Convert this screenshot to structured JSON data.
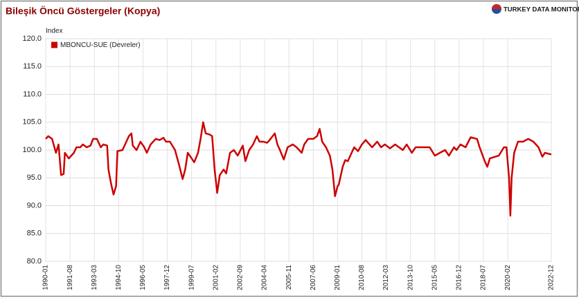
{
  "brand": "TURKEY DATA MONITOR",
  "chart_data": {
    "type": "line",
    "title": "Bileşik Öncü Göstergeler (Kopya)",
    "y_label": "Index",
    "grid": true,
    "legend": "top-left",
    "ylim": [
      80,
      120
    ],
    "yticks": [
      {
        "value": 80,
        "label": "80.0"
      },
      {
        "value": 85,
        "label": "85.0"
      },
      {
        "value": 90,
        "label": "90.0"
      },
      {
        "value": 95,
        "label": "95.0"
      },
      {
        "value": 100,
        "label": "100.0"
      },
      {
        "value": 105,
        "label": "105.0"
      },
      {
        "value": 110,
        "label": "110.0"
      },
      {
        "value": 115,
        "label": "115.0"
      },
      {
        "value": 120,
        "label": "120.0"
      }
    ],
    "xlim": [
      "1990-01",
      "2022-12"
    ],
    "xticks": [
      "1990-01",
      "1991-08",
      "1993-03",
      "1994-10",
      "1996-05",
      "1997-12",
      "1999-07",
      "2001-02",
      "2002-09",
      "2004-04",
      "2005-11",
      "2007-06",
      "2009-01",
      "2010-08",
      "2012-03",
      "2013-10",
      "2015-05",
      "2016-12",
      "2018-07",
      "2020-02",
      "2022-12"
    ],
    "x": [
      "1990-01",
      "1990-03",
      "1990-06",
      "1990-09",
      "1990-11",
      "1991-01",
      "1991-03",
      "1991-04",
      "1991-07",
      "1991-11",
      "1992-01",
      "1992-04",
      "1992-06",
      "1992-09",
      "1992-12",
      "1993-02",
      "1993-05",
      "1993-08",
      "1993-10",
      "1994-01",
      "1994-02",
      "1994-04",
      "1994-06",
      "1994-08",
      "1994-09",
      "1995-01",
      "1995-03",
      "1995-06",
      "1995-08",
      "1995-09",
      "1995-12",
      "1996-03",
      "1996-06",
      "1996-08",
      "1996-11",
      "1997-03",
      "1997-06",
      "1997-09",
      "1997-11",
      "1998-02",
      "1998-06",
      "1998-09",
      "1998-12",
      "1999-02",
      "1999-04",
      "1999-07",
      "1999-09",
      "1999-12",
      "2000-02",
      "2000-04",
      "2000-06",
      "2000-09",
      "2000-11",
      "2001-01",
      "2001-03",
      "2001-05",
      "2001-08",
      "2001-10",
      "2002-01",
      "2002-04",
      "2002-07",
      "2002-11",
      "2003-01",
      "2003-04",
      "2003-07",
      "2003-10",
      "2003-12",
      "2004-03",
      "2004-06",
      "2004-08",
      "2004-12",
      "2005-02",
      "2005-04",
      "2005-07",
      "2005-10",
      "2006-02",
      "2006-05",
      "2006-07",
      "2006-09",
      "2006-11",
      "2007-02",
      "2007-06",
      "2007-09",
      "2007-11",
      "2008-01",
      "2008-04",
      "2008-07",
      "2008-09",
      "2008-11",
      "2009-01",
      "2009-02",
      "2009-05",
      "2009-07",
      "2009-09",
      "2009-12",
      "2010-02",
      "2010-05",
      "2010-08",
      "2010-11",
      "2011-02",
      "2011-04",
      "2011-08",
      "2011-11",
      "2012-02",
      "2012-06",
      "2012-10",
      "2013-01",
      "2013-04",
      "2013-07",
      "2013-11",
      "2014-02",
      "2014-06",
      "2014-10",
      "2015-01",
      "2015-05",
      "2015-09",
      "2016-01",
      "2016-04",
      "2016-08",
      "2016-10",
      "2017-01",
      "2017-05",
      "2017-09",
      "2018-02",
      "2018-04",
      "2018-08",
      "2018-10",
      "2018-12",
      "2019-07",
      "2019-11",
      "2020-01",
      "2020-03",
      "2020-04",
      "2020-05",
      "2020-07",
      "2020-10",
      "2021-02",
      "2021-06",
      "2021-10",
      "2022-02",
      "2022-05",
      "2022-07",
      "2022-12"
    ],
    "series": [
      {
        "name": "MBONCU-SUE (Devreler)",
        "color": "#cc0000",
        "values": [
          102,
          102.5,
          102,
          99.5,
          101,
          95.5,
          95.7,
          99.5,
          98.5,
          99.5,
          100.5,
          100.5,
          101,
          100.5,
          100.8,
          102,
          102,
          100.5,
          101,
          100.8,
          96.5,
          94,
          92,
          93.5,
          99.8,
          100,
          101,
          102.5,
          103,
          100.8,
          100,
          101.5,
          100.5,
          99.5,
          101,
          102,
          101.8,
          102.2,
          101.5,
          101.5,
          100,
          97.5,
          94.8,
          96.5,
          99.5,
          98.5,
          97.8,
          99.5,
          102,
          105,
          103,
          102.8,
          102.5,
          96.5,
          92.3,
          95.5,
          96.5,
          95.8,
          99.5,
          100,
          99,
          100.8,
          98,
          100,
          101,
          102.5,
          101.5,
          101.5,
          101.3,
          101.8,
          103,
          101,
          100,
          98.3,
          100.5,
          101,
          100.5,
          100,
          99.5,
          101,
          102,
          102,
          102.5,
          103.8,
          101.5,
          100.5,
          99,
          96.5,
          91.7,
          93.5,
          93.8,
          97,
          98.2,
          98,
          99.5,
          100.5,
          99.8,
          101,
          101.8,
          101,
          100.5,
          101.5,
          100.5,
          101,
          100.3,
          101,
          100.5,
          100,
          101,
          99.5,
          100.5,
          100.5,
          100.5,
          100.5,
          99,
          99.5,
          100,
          99,
          100.5,
          100,
          101,
          100.5,
          102.3,
          102,
          100.5,
          98,
          97,
          98.5,
          99,
          100.5,
          100.5,
          95,
          88.2,
          95,
          99.5,
          101.5,
          101.5,
          102,
          101.5,
          100.5,
          98.8,
          99.5,
          99.2
        ]
      }
    ]
  }
}
